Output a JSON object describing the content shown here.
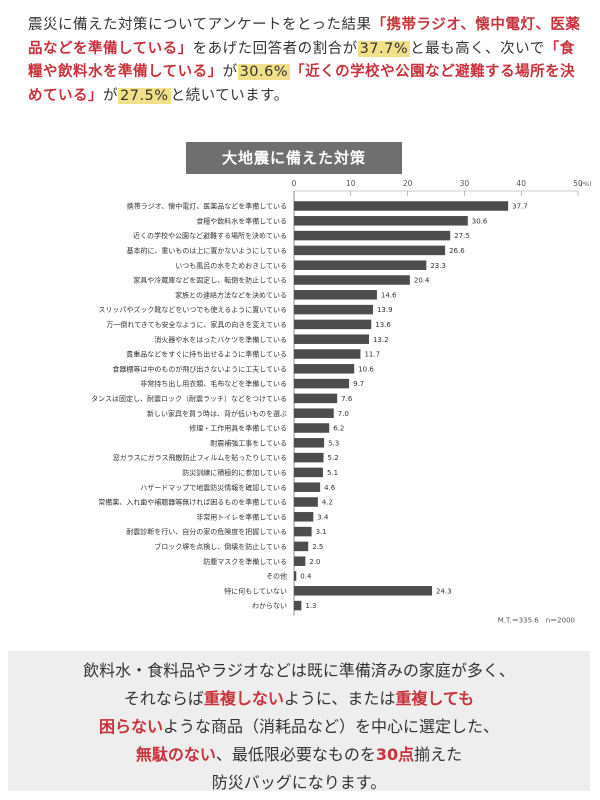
{
  "intro": {
    "t1": "震災に備えた対策についてアンケートをとった結果",
    "q1": "「携帯ラジオ、懐中電灯、医薬品などを準備している」",
    "t2": "をあげた回答者の割合が",
    "p1": "37.7%",
    "t3": "と最も高く、次いで",
    "q2": "「食糧や飲料水を準備している」",
    "t4": "が",
    "p2": "30.6%",
    "q3": "「近くの学校や公園など避難する場所を決めている」",
    "t5": "が",
    "p3": "27.5%",
    "t6": "と続いています。"
  },
  "chart_data": {
    "type": "bar",
    "orientation": "horizontal",
    "title": "大地震に備えた対策",
    "unit_label": "(%)",
    "ticks": [
      0,
      10,
      20,
      30,
      40,
      50
    ],
    "xlim": [
      0,
      50
    ],
    "categories": [
      "携帯ラジオ、懐中電灯、医薬品などを準備している",
      "食糧や飲料水を準備している",
      "近くの学校や公園など避難する場所を決めている",
      "基本的に、重いものは上に置かないようにしている",
      "いつも風呂の水をためおきしている",
      "家具や冷蔵庫などを固定し、転倒を防止している",
      "家族との連絡方法などを決めている",
      "スリッパやズック靴などをいつでも使えるように置いている",
      "万一倒れてきても安全なように、家具の向きを変えている",
      "消火器や水をはったバケツを準備している",
      "貴重品などをすぐに持ち出せるように準備している",
      "食器棚等は中のものが飛び出さないように工夫している",
      "非常持ち出し用衣類、毛布などを準備している",
      "タンスは固定し、耐震ロック（耐震ラッチ）などをつけている",
      "新しい家具を買う時は、背が低いものを選ぶ",
      "修理・工作用具を準備している",
      "耐震補強工事をしている",
      "窓ガラスにガラス飛散防止フィルムを貼ったりしている",
      "防災訓練に積極的に参加している",
      "ハザードマップで地震防災情報を確認している",
      "常備薬、入れ歯や補聴器等無ければ困るものを準備している",
      "非常用トイレを準備している",
      "耐震診断を行い、自分の家の危険度を把握している",
      "ブロック塀を点検し、倒壊を防止している",
      "防塵マスクを準備している",
      "その他",
      "特に何もしていない",
      "わからない"
    ],
    "values": [
      37.7,
      30.6,
      27.5,
      26.6,
      23.3,
      20.4,
      14.6,
      13.9,
      13.6,
      13.2,
      11.7,
      10.6,
      9.7,
      7.6,
      7.0,
      6.2,
      5.3,
      5.2,
      5.1,
      4.6,
      4.2,
      3.4,
      3.1,
      2.5,
      2.0,
      0.4,
      24.3,
      1.3
    ],
    "value_labels": [
      "37.7",
      "30.6",
      "27.5",
      "26.6",
      "23.3",
      "20.4",
      "14.6",
      "13.9",
      "13.6",
      "13.2",
      "11.7",
      "10.6",
      "9.7",
      "7.6",
      "7.0",
      "6.2",
      "5.3",
      "5.2",
      "5.1",
      "4.6",
      "4.2",
      "3.4",
      "3.1",
      "2.5",
      "2.0",
      "0.4",
      "24.3",
      "1.3"
    ],
    "note": "M.T.＝335.6　n＝2000"
  },
  "footer": {
    "a1": "飲料水・食料品やラジオなどは既に準備済みの家庭が多く、",
    "a2": "それならば",
    "r1": "重複しない",
    "a3": "ように、または",
    "r2": "重複しても",
    "r3": "困らない",
    "a4": "ような商品（消耗品など）を中心に選定した、",
    "r4": "無駄のない",
    "a5": "、最低限必要なものを",
    "r5": "30点",
    "a6": "揃えた",
    "a7": "防災バッグになります。"
  },
  "colors": {
    "bar": "#4d4d4d",
    "accent_red": "#c8323a",
    "highlight": "#f1e08a",
    "title_bg": "#6f6f6f",
    "footer_bg": "#eeeeee"
  }
}
